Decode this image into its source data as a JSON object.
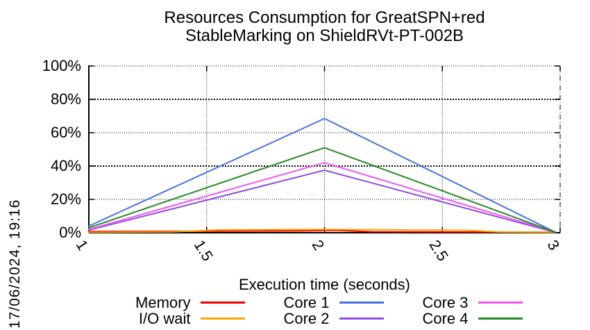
{
  "page": {
    "date_label": "17/06/2024, 19:16"
  },
  "chart_data": {
    "type": "line",
    "title_line1": "Resources Consumption for GreatSPN+red",
    "title_line2": "StableMarking on ShieldRVt-PT-002B",
    "xlabel": "Execution time (seconds)",
    "ylabel": "",
    "xlim": [
      1,
      3
    ],
    "ylim": [
      0,
      100
    ],
    "grid": true,
    "legend_position": "bottom",
    "x_ticks": [
      1,
      1.5,
      2,
      2.5,
      3
    ],
    "x_tick_labels": [
      "1",
      "1.5",
      "2",
      "2.5",
      "3"
    ],
    "y_ticks": [
      0,
      20,
      40,
      60,
      80,
      100
    ],
    "y_tick_labels": [
      "0%",
      "20%",
      "40%",
      "60%",
      "80%",
      "100%"
    ],
    "series": [
      {
        "name": "Memory",
        "color": "#ee0000",
        "points": [
          [
            1,
            0.8
          ],
          [
            1.45,
            0.9
          ],
          [
            1.9,
            1.1
          ],
          [
            2.05,
            1.4
          ],
          [
            2.2,
            0.6
          ],
          [
            2.6,
            0.4
          ],
          [
            2.98,
            0.3
          ]
        ]
      },
      {
        "name": "I/O wait",
        "color": "#f7a600",
        "points": [
          [
            1,
            0.3
          ],
          [
            1.35,
            0.5
          ],
          [
            1.55,
            1.7
          ],
          [
            2.0,
            2.0
          ],
          [
            2.3,
            1.7
          ],
          [
            2.6,
            1.5
          ],
          [
            2.75,
            0.4
          ],
          [
            2.98,
            0.2
          ]
        ]
      },
      {
        "name": "Core 1",
        "color": "#4a6fe3",
        "points": [
          [
            1,
            4.0
          ],
          [
            2,
            68.5
          ],
          [
            2.98,
            0.3
          ]
        ]
      },
      {
        "name": "Core 2",
        "color": "#8d4ce8",
        "points": [
          [
            1,
            1.6
          ],
          [
            2,
            37.5
          ],
          [
            2.98,
            0.2
          ]
        ]
      },
      {
        "name": "Core 3",
        "color": "#f055f0",
        "points": [
          [
            1,
            2.0
          ],
          [
            2,
            42.0
          ],
          [
            2.98,
            0.4
          ]
        ]
      },
      {
        "name": "Core 4",
        "color": "#228b22",
        "points": [
          [
            1,
            3.0
          ],
          [
            2,
            51.0
          ],
          [
            2.98,
            0.3
          ]
        ]
      }
    ]
  }
}
